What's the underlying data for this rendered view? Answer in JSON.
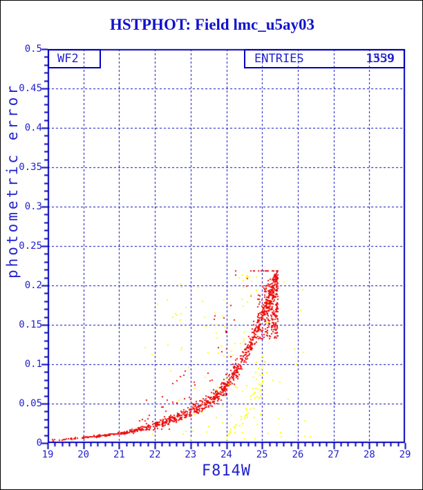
{
  "window": {
    "background": "#ffffff",
    "border_color": "#000000"
  },
  "title": {
    "text": "HSTPHOT: Field lmc_u5ay03",
    "color": "#1212cc"
  },
  "annotations": {
    "chip_label": "WF2",
    "entries_label": "ENTRIES",
    "entries_values": [
      "1539",
      "1359"
    ]
  },
  "chart_data": {
    "type": "scatter",
    "title": "HSTPHOT: Field lmc_u5ay03",
    "xlabel": "F814W",
    "ylabel": "photometric error",
    "xlim": [
      19,
      29
    ],
    "ylim": [
      0,
      0.5
    ],
    "x_tick_values": [
      19,
      20,
      21,
      22,
      23,
      24,
      25,
      26,
      27,
      28,
      29
    ],
    "x_tick_labels": [
      "19",
      "20",
      "21",
      "22",
      "23",
      "24",
      "25",
      "26",
      "27",
      "28",
      "29"
    ],
    "x_minor_step": 0.2,
    "y_tick_values": [
      0.5,
      0.45,
      0.4,
      0.35,
      0.3,
      0.25,
      0.2,
      0.15,
      0.1,
      0.05,
      0
    ],
    "y_tick_labels": [
      "0.5",
      "0.45",
      "0.4",
      "0.35",
      "0.3",
      "0.25",
      "0.2",
      "0.15",
      "0.1",
      "0.05",
      "0"
    ],
    "y_minor_step": 0.01,
    "grid": {
      "on": true,
      "style": "dashed",
      "color": "#0000bb",
      "x_lines": [
        20,
        21,
        22,
        23,
        24,
        25,
        26,
        27,
        28
      ],
      "y_lines": [
        0.05,
        0.1,
        0.15,
        0.2,
        0.25,
        0.3,
        0.35,
        0.4,
        0.45
      ]
    },
    "frame_color": "#0000bb",
    "legend": {
      "entries_count_overlapped": [
        "1539",
        "1359"
      ]
    },
    "series": [
      {
        "name": "wf2-stars-red",
        "color": "#ee1111",
        "marker": "square",
        "marker_size": 2,
        "main_curve": {
          "mag": [
            19.0,
            19.5,
            20.0,
            20.5,
            21.0,
            21.5,
            22.0,
            22.5,
            23.0,
            23.45,
            24.0,
            24.3,
            24.6,
            24.9,
            25.1,
            25.3,
            25.45
          ],
          "err": [
            0.004,
            0.005,
            0.007,
            0.009,
            0.012,
            0.016,
            0.022,
            0.03,
            0.04,
            0.05,
            0.072,
            0.095,
            0.118,
            0.148,
            0.172,
            0.195,
            0.212
          ]
        },
        "gen": {
          "seed": 20011,
          "n_base": 950,
          "mag_min": 19.0,
          "mag_span": 6.45,
          "mag_pow": 0.55,
          "sigma_base": 0.0006,
          "sigma_slope": 0.0016,
          "outlier_start": 21.5,
          "outlier_frac": 0.11,
          "outlier_boost": 1.1,
          "n_blob": 240,
          "blob_m0": 24.8,
          "blob_mspan": 0.65,
          "blob_e0": 0.132,
          "blob_espan": 0.086,
          "err_max": 0.218
        }
      },
      {
        "name": "overlay-stars-yellow",
        "color": "#ffff00",
        "marker": "square",
        "marker_size": 2,
        "band": {
          "n": 45,
          "m0": 24.05,
          "mspan": 1.05,
          "e0": 0.012,
          "decade_per_mag": 1.05,
          "jitter": 0.25
        },
        "scatter": {
          "n": 120,
          "center": 24.2,
          "spread": 2.6,
          "m_min": 21.4,
          "m_max": 26.35,
          "e_min": 0.004,
          "e_span": 0.21,
          "e_pow": 1.3,
          "seed": 7333
        }
      }
    ]
  },
  "plot_geometry_note": "WF2 chip error-vs-magnitude quality plot"
}
